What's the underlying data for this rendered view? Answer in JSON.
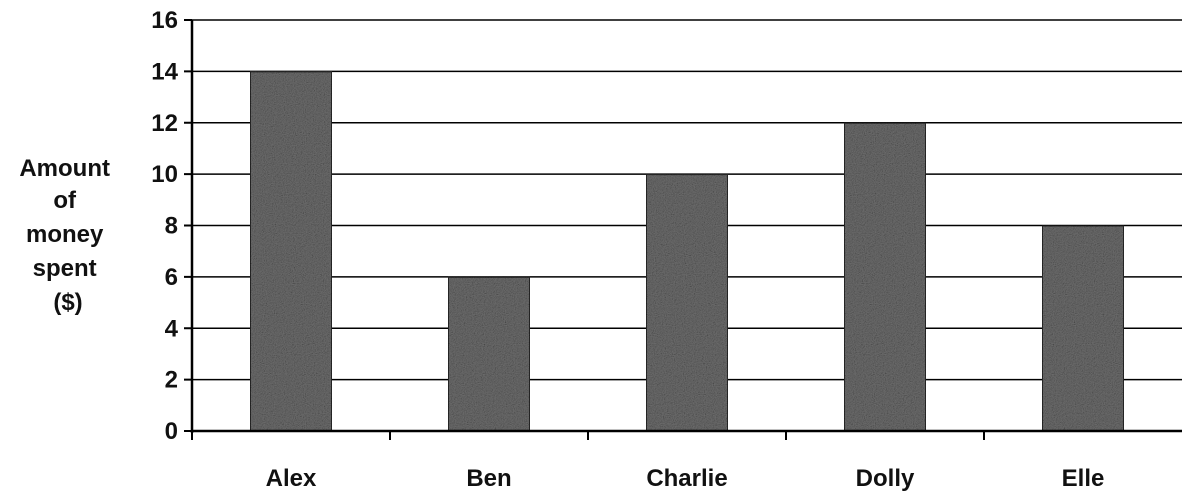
{
  "chart_data": {
    "type": "bar",
    "categories": [
      "Alex",
      "Ben",
      "Charlie",
      "Dolly",
      "Elle"
    ],
    "values": [
      14,
      6,
      10,
      12,
      8
    ],
    "title": "",
    "xlabel": "",
    "ylabel": "Amount of money spent ($)",
    "ylabel_lines": [
      "Amount",
      "of",
      "money",
      "spent",
      "($)"
    ],
    "ylim": [
      0,
      16
    ],
    "yticks": [
      0,
      2,
      4,
      6,
      8,
      10,
      12,
      14,
      16
    ],
    "grid": true,
    "legend": "none",
    "colors": {
      "bar": "#6e6e6e",
      "bar_edge": "#2a2a2a",
      "grid": "#000000",
      "text": "#111111",
      "background": "#ffffff"
    }
  }
}
